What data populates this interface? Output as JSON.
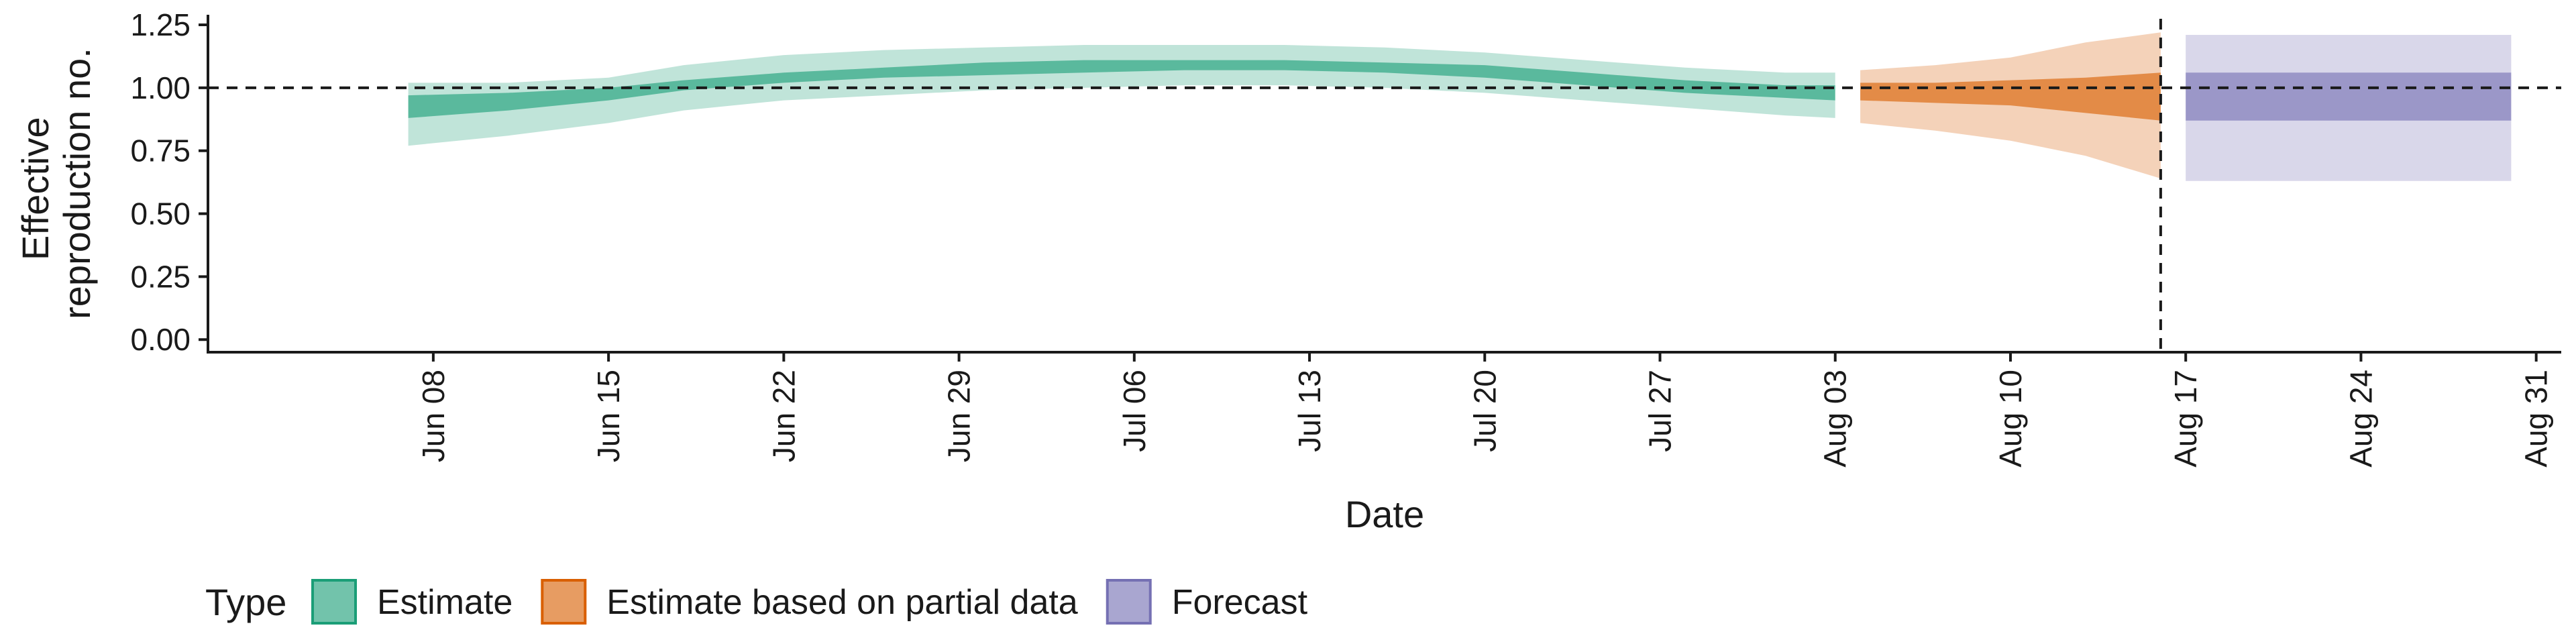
{
  "chart_data": {
    "type": "area",
    "title": "",
    "xlabel": "Date",
    "ylabel_lines": [
      "Effective",
      "reproduction no."
    ],
    "ylim": [
      -0.05,
      1.29
    ],
    "xlim": [
      "2020-05-30",
      "2020-09-01"
    ],
    "y_ticks": [
      0.0,
      0.25,
      0.5,
      0.75,
      1.0,
      1.25
    ],
    "y_tick_labels": [
      "0.00",
      "0.25",
      "0.50",
      "0.75",
      "1.00",
      "1.25"
    ],
    "x_ticks": [
      "2020-06-08",
      "2020-06-15",
      "2020-06-22",
      "2020-06-29",
      "2020-07-06",
      "2020-07-13",
      "2020-07-20",
      "2020-07-27",
      "2020-08-03",
      "2020-08-10",
      "2020-08-17",
      "2020-08-24",
      "2020-08-31"
    ],
    "x_tick_labels": [
      "Jun 08",
      "Jun 15",
      "Jun 22",
      "Jun 29",
      "Jul 06",
      "Jul 13",
      "Jul 20",
      "Jul 27",
      "Aug 03",
      "Aug 10",
      "Aug 17",
      "Aug 24",
      "Aug 31"
    ],
    "reference_line_y": 1.0,
    "forecast_start_date": "2020-08-16",
    "grid": false,
    "legend": {
      "title": "Type",
      "position": "bottom-left",
      "items": [
        {
          "label": "Estimate",
          "color": "#1b9e77"
        },
        {
          "label": "Estimate based on partial data",
          "color": "#d95f02"
        },
        {
          "label": "Forecast",
          "color": "#7570b3"
        }
      ]
    },
    "series": [
      {
        "name": "Estimate",
        "color": "#1b9e77",
        "points": [
          {
            "date": "2020-06-07",
            "lower90": 0.77,
            "lower50": 0.88,
            "upper50": 0.97,
            "upper90": 1.02
          },
          {
            "date": "2020-06-11",
            "lower90": 0.81,
            "lower50": 0.91,
            "upper50": 0.98,
            "upper90": 1.02
          },
          {
            "date": "2020-06-15",
            "lower90": 0.86,
            "lower50": 0.95,
            "upper50": 1.0,
            "upper90": 1.04
          },
          {
            "date": "2020-06-18",
            "lower90": 0.91,
            "lower50": 0.99,
            "upper50": 1.03,
            "upper90": 1.09
          },
          {
            "date": "2020-06-22",
            "lower90": 0.95,
            "lower50": 1.02,
            "upper50": 1.06,
            "upper90": 1.13
          },
          {
            "date": "2020-06-26",
            "lower90": 0.97,
            "lower50": 1.04,
            "upper50": 1.08,
            "upper90": 1.15
          },
          {
            "date": "2020-06-30",
            "lower90": 0.99,
            "lower50": 1.05,
            "upper50": 1.1,
            "upper90": 1.16
          },
          {
            "date": "2020-07-04",
            "lower90": 1.0,
            "lower50": 1.06,
            "upper50": 1.11,
            "upper90": 1.17
          },
          {
            "date": "2020-07-08",
            "lower90": 1.01,
            "lower50": 1.07,
            "upper50": 1.11,
            "upper90": 1.17
          },
          {
            "date": "2020-07-12",
            "lower90": 1.01,
            "lower50": 1.07,
            "upper50": 1.11,
            "upper90": 1.17
          },
          {
            "date": "2020-07-16",
            "lower90": 1.0,
            "lower50": 1.06,
            "upper50": 1.1,
            "upper90": 1.16
          },
          {
            "date": "2020-07-20",
            "lower90": 0.98,
            "lower50": 1.04,
            "upper50": 1.09,
            "upper90": 1.14
          },
          {
            "date": "2020-07-24",
            "lower90": 0.95,
            "lower50": 1.01,
            "upper50": 1.06,
            "upper90": 1.11
          },
          {
            "date": "2020-07-28",
            "lower90": 0.92,
            "lower50": 0.98,
            "upper50": 1.03,
            "upper90": 1.08
          },
          {
            "date": "2020-08-01",
            "lower90": 0.89,
            "lower50": 0.96,
            "upper50": 1.01,
            "upper90": 1.06
          },
          {
            "date": "2020-08-03",
            "lower90": 0.88,
            "lower50": 0.95,
            "upper50": 1.01,
            "upper90": 1.06
          }
        ]
      },
      {
        "name": "Estimate based on partial data",
        "color": "#d95f02",
        "points": [
          {
            "date": "2020-08-04",
            "lower90": 0.86,
            "lower50": 0.95,
            "upper50": 1.02,
            "upper90": 1.07
          },
          {
            "date": "2020-08-07",
            "lower90": 0.83,
            "lower50": 0.94,
            "upper50": 1.02,
            "upper90": 1.09
          },
          {
            "date": "2020-08-10",
            "lower90": 0.79,
            "lower50": 0.93,
            "upper50": 1.03,
            "upper90": 1.12
          },
          {
            "date": "2020-08-13",
            "lower90": 0.73,
            "lower50": 0.9,
            "upper50": 1.04,
            "upper90": 1.18
          },
          {
            "date": "2020-08-16",
            "lower90": 0.64,
            "lower50": 0.87,
            "upper50": 1.06,
            "upper90": 1.22
          }
        ]
      },
      {
        "name": "Forecast",
        "color": "#7570b3",
        "points": [
          {
            "date": "2020-08-17",
            "lower90": 0.63,
            "lower50": 0.87,
            "upper50": 1.06,
            "upper90": 1.21
          },
          {
            "date": "2020-08-30",
            "lower90": 0.63,
            "lower50": 0.87,
            "upper50": 1.06,
            "upper90": 1.21
          }
        ]
      }
    ]
  }
}
